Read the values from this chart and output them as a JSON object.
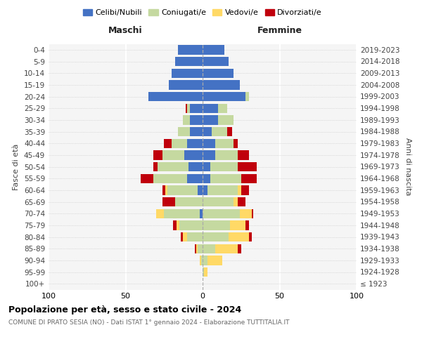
{
  "age_groups": [
    "100+",
    "95-99",
    "90-94",
    "85-89",
    "80-84",
    "75-79",
    "70-74",
    "65-69",
    "60-64",
    "55-59",
    "50-54",
    "45-49",
    "40-44",
    "35-39",
    "30-34",
    "25-29",
    "20-24",
    "15-19",
    "10-14",
    "5-9",
    "0-4"
  ],
  "birth_years": [
    "≤ 1923",
    "1924-1928",
    "1929-1933",
    "1934-1938",
    "1939-1943",
    "1944-1948",
    "1949-1953",
    "1954-1958",
    "1959-1963",
    "1964-1968",
    "1969-1973",
    "1974-1978",
    "1979-1983",
    "1984-1988",
    "1989-1993",
    "1994-1998",
    "1999-2003",
    "2004-2008",
    "2009-2013",
    "2014-2018",
    "2019-2023"
  ],
  "maschi": {
    "celibi": [
      0,
      0,
      0,
      0,
      0,
      0,
      2,
      0,
      3,
      10,
      9,
      12,
      10,
      8,
      8,
      8,
      35,
      22,
      20,
      18,
      16
    ],
    "coniugati": [
      0,
      0,
      1,
      3,
      10,
      15,
      23,
      18,
      20,
      22,
      20,
      14,
      10,
      8,
      5,
      2,
      0,
      0,
      0,
      0,
      0
    ],
    "vedovi": [
      0,
      0,
      1,
      1,
      3,
      2,
      5,
      0,
      1,
      0,
      0,
      0,
      0,
      0,
      0,
      0,
      0,
      0,
      0,
      0,
      0
    ],
    "divorziati": [
      0,
      0,
      0,
      1,
      1,
      2,
      0,
      8,
      2,
      8,
      3,
      6,
      5,
      0,
      0,
      1,
      0,
      0,
      0,
      0,
      0
    ]
  },
  "femmine": {
    "nubili": [
      0,
      0,
      0,
      0,
      0,
      0,
      0,
      0,
      3,
      5,
      5,
      8,
      8,
      6,
      10,
      10,
      28,
      24,
      20,
      17,
      14
    ],
    "coniugate": [
      0,
      1,
      3,
      8,
      17,
      18,
      24,
      20,
      20,
      20,
      18,
      15,
      12,
      10,
      10,
      6,
      2,
      0,
      0,
      0,
      0
    ],
    "vedove": [
      0,
      2,
      10,
      15,
      13,
      10,
      8,
      3,
      2,
      0,
      0,
      0,
      0,
      0,
      0,
      0,
      0,
      0,
      0,
      0,
      0
    ],
    "divorziate": [
      0,
      0,
      0,
      2,
      2,
      2,
      1,
      5,
      5,
      10,
      12,
      7,
      3,
      3,
      0,
      0,
      0,
      0,
      0,
      0,
      0
    ]
  },
  "colors": {
    "celibi": "#4472C4",
    "coniugati": "#C5D9A0",
    "vedovi": "#FFD966",
    "divorziati": "#C0000C"
  },
  "xlim": 100,
  "title": "Popolazione per età, sesso e stato civile - 2024",
  "subtitle": "COMUNE DI PRATO SESIA (NO) - Dati ISTAT 1° gennaio 2024 - Elaborazione TUTTITALIA.IT",
  "ylabel_left": "Fasce di età",
  "ylabel_right": "Anni di nascita",
  "legend_labels": [
    "Celibi/Nubili",
    "Coniugati/e",
    "Vedovi/e",
    "Divorziati/e"
  ],
  "maschi_label": "Maschi",
  "femmine_label": "Femmine"
}
